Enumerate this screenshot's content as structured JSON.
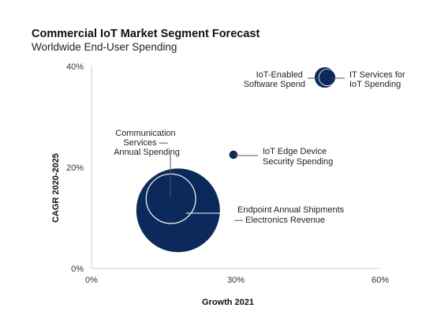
{
  "header": {
    "title": "Commercial IoT Market Segment Forecast",
    "subtitle": "Worldwide End-User Spending"
  },
  "chart_data": {
    "type": "bubble",
    "title": "Commercial IoT Market Segment Forecast",
    "subtitle": "Worldwide End-User Spending",
    "xlabel": "Growth 2021",
    "ylabel": "CAGR 2020-2025",
    "xlim": [
      0,
      60
    ],
    "ylim": [
      0,
      40
    ],
    "x_ticks": [
      "0%",
      "30%",
      "60%"
    ],
    "y_ticks": [
      "0%",
      "20%",
      "40%"
    ],
    "grid": false,
    "colors": {
      "fill": "#0b2a5b",
      "outline": "#ffffff",
      "leader": "#555555"
    },
    "points": [
      {
        "label": "Endpoint Annual Shipments — Electronics Revenue",
        "x": 18,
        "y": 11.5,
        "relative_size": 1.0,
        "style": "filled"
      },
      {
        "label": "Communication Services — Annual Spending",
        "x": 16.5,
        "y": 13.8,
        "relative_size": 0.35,
        "style": "outline"
      },
      {
        "label": "IoT Edge Device Security Spending",
        "x": 29.5,
        "y": 22.5,
        "relative_size": 0.01,
        "style": "filled"
      },
      {
        "label": "IoT-Enabled Software Spend",
        "x": 48.5,
        "y": 37.8,
        "relative_size": 0.06,
        "style": "filled"
      },
      {
        "label": "IT Services for IoT Spending",
        "x": 49,
        "y": 37.8,
        "relative_size": 0.04,
        "style": "filled"
      }
    ]
  }
}
